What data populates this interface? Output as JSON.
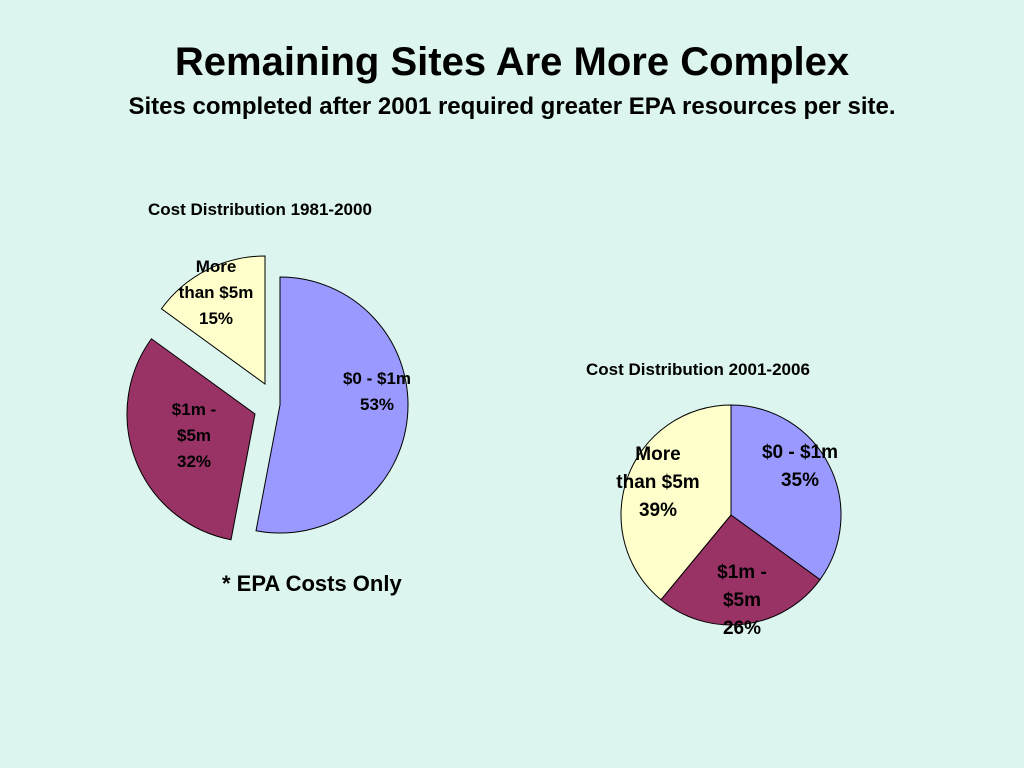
{
  "slide": {
    "title": "Remaining Sites Are More Complex",
    "subtitle": "Sites completed after 2001 required greater EPA resources per site.",
    "footnote": "* EPA Costs Only"
  },
  "colors": {
    "background": "#dcf5ee",
    "slice_0_1m": "#9999ff",
    "slice_1m_5m": "#993366",
    "slice_more_5m": "#ffffcc"
  },
  "chart_data": [
    {
      "type": "pie",
      "title": "Cost Distribution 1981-2000",
      "exploded": true,
      "slices": [
        {
          "label": "$0 - $1m",
          "value": 53,
          "value_label": "53%",
          "color": "#9999ff"
        },
        {
          "label": "$1m - $5m",
          "value": 32,
          "value_label": "32%",
          "color": "#993366"
        },
        {
          "label": "More than $5m",
          "value": 15,
          "value_label": "15%",
          "color": "#ffffcc"
        }
      ]
    },
    {
      "type": "pie",
      "title": "Cost Distribution 2001-2006",
      "exploded": false,
      "slices": [
        {
          "label": "$0 - $1m",
          "value": 35,
          "value_label": "35%",
          "color": "#9999ff"
        },
        {
          "label": "$1m - $5m",
          "value": 26,
          "value_label": "26%",
          "color": "#993366"
        },
        {
          "label": "More than $5m",
          "value": 39,
          "value_label": "39%",
          "color": "#ffffcc"
        }
      ]
    }
  ]
}
